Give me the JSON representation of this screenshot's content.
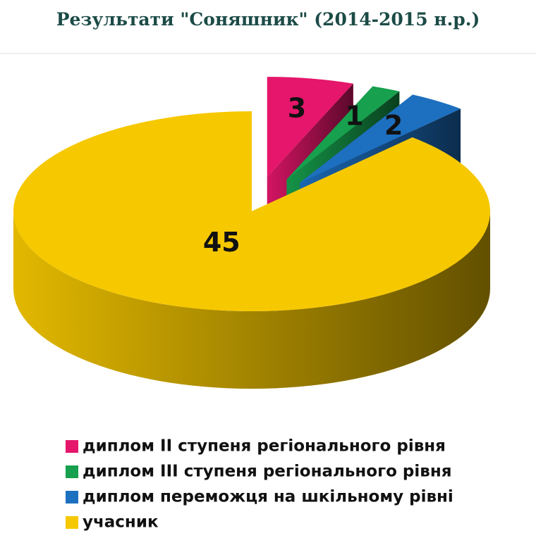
{
  "chart_data": {
    "type": "pie",
    "title": "Результати \"Соняшник\" (2014-2015 н.р.)",
    "categories": [
      "диплом ІІ ступеня регіонального рівня",
      "диплом ІІІ ступеня регіонального рівня",
      "диплом переможця на шкільному рівні",
      "учасник"
    ],
    "values": [
      3,
      1,
      2,
      45
    ],
    "colors": [
      "#e5166b",
      "#17a04d",
      "#1d6fbf",
      "#f6c800"
    ]
  }
}
